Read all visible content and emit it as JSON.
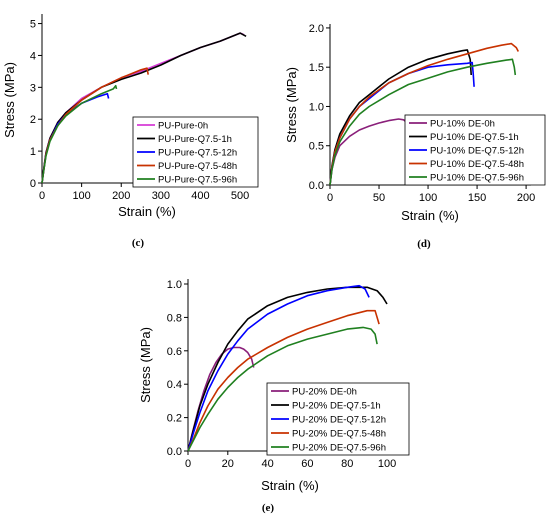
{
  "chart_data": [
    {
      "id": "c",
      "type": "line",
      "panel_label": "(c)",
      "xlabel": "Strain (%)",
      "ylabel": "Stress (MPa)",
      "xlim": [
        0,
        530
      ],
      "ylim": [
        0,
        5.3
      ],
      "xticks": [
        0,
        100,
        200,
        300,
        400,
        500
      ],
      "yticks": [
        0,
        1,
        2,
        3,
        4,
        5
      ],
      "legend_position": "bottom-right",
      "series": [
        {
          "name": "PU-Pure-0h",
          "color": "#d63bd6",
          "points": [
            [
              0,
              0
            ],
            [
              5,
              0.5
            ],
            [
              10,
              0.95
            ],
            [
              20,
              1.4
            ],
            [
              40,
              1.9
            ],
            [
              60,
              2.2
            ],
            [
              100,
              2.65
            ],
            [
              150,
              3.0
            ],
            [
              200,
              3.3
            ],
            [
              250,
              3.5
            ],
            [
              300,
              3.75
            ],
            [
              350,
              4.0
            ],
            [
              400,
              4.25
            ],
            [
              450,
              4.45
            ],
            [
              500,
              4.7
            ],
            [
              510,
              4.65
            ]
          ]
        },
        {
          "name": "PU-Pure-Q7.5-1h",
          "color": "#000000",
          "points": [
            [
              0,
              0
            ],
            [
              5,
              0.5
            ],
            [
              10,
              0.95
            ],
            [
              20,
              1.4
            ],
            [
              40,
              1.9
            ],
            [
              60,
              2.2
            ],
            [
              100,
              2.6
            ],
            [
              150,
              3.0
            ],
            [
              200,
              3.25
            ],
            [
              250,
              3.45
            ],
            [
              300,
              3.7
            ],
            [
              350,
              4.0
            ],
            [
              400,
              4.25
            ],
            [
              450,
              4.45
            ],
            [
              500,
              4.7
            ],
            [
              515,
              4.6
            ]
          ]
        },
        {
          "name": "PU-Pure-Q7.5-12h",
          "color": "#0000ff",
          "points": [
            [
              0,
              0
            ],
            [
              5,
              0.45
            ],
            [
              10,
              0.9
            ],
            [
              20,
              1.35
            ],
            [
              40,
              1.85
            ],
            [
              60,
              2.15
            ],
            [
              100,
              2.5
            ],
            [
              140,
              2.7
            ],
            [
              165,
              2.8
            ],
            [
              168,
              2.65
            ]
          ]
        },
        {
          "name": "PU-Pure-Q7.5-48h",
          "color": "#c83200",
          "points": [
            [
              0,
              0
            ],
            [
              5,
              0.45
            ],
            [
              10,
              0.9
            ],
            [
              20,
              1.35
            ],
            [
              40,
              1.8
            ],
            [
              60,
              2.15
            ],
            [
              100,
              2.6
            ],
            [
              150,
              3.0
            ],
            [
              200,
              3.3
            ],
            [
              250,
              3.55
            ],
            [
              265,
              3.6
            ],
            [
              268,
              3.4
            ]
          ]
        },
        {
          "name": "PU-Pure-Q7.5-96h",
          "color": "#208020",
          "points": [
            [
              0,
              0
            ],
            [
              5,
              0.45
            ],
            [
              10,
              0.85
            ],
            [
              20,
              1.3
            ],
            [
              40,
              1.8
            ],
            [
              60,
              2.1
            ],
            [
              100,
              2.5
            ],
            [
              150,
              2.8
            ],
            [
              180,
              2.95
            ],
            [
              186,
              3.05
            ],
            [
              188,
              2.95
            ]
          ]
        }
      ]
    },
    {
      "id": "d",
      "type": "line",
      "panel_label": "(d)",
      "xlabel": "Strain (%)",
      "ylabel": "Stress (MPa)",
      "xlim": [
        0,
        205
      ],
      "ylim": [
        0,
        2.05
      ],
      "xticks": [
        0,
        50,
        100,
        150,
        200
      ],
      "yticks": [
        0.0,
        0.5,
        1.0,
        1.5,
        2.0
      ],
      "legend_position": "bottom-right",
      "series": [
        {
          "name": "PU-10% DE-0h",
          "color": "#8a1f7a",
          "points": [
            [
              0,
              0
            ],
            [
              2,
              0.2
            ],
            [
              5,
              0.35
            ],
            [
              10,
              0.5
            ],
            [
              20,
              0.62
            ],
            [
              30,
              0.7
            ],
            [
              40,
              0.75
            ],
            [
              50,
              0.79
            ],
            [
              60,
              0.82
            ],
            [
              70,
              0.84
            ],
            [
              75,
              0.83
            ],
            [
              78,
              0.8
            ],
            [
              79,
              0.62
            ],
            [
              80,
              0.6
            ]
          ]
        },
        {
          "name": "PU-10% DE-Q7.5-1h",
          "color": "#000000",
          "points": [
            [
              0,
              0
            ],
            [
              2,
              0.25
            ],
            [
              5,
              0.45
            ],
            [
              10,
              0.65
            ],
            [
              20,
              0.88
            ],
            [
              30,
              1.05
            ],
            [
              40,
              1.15
            ],
            [
              60,
              1.35
            ],
            [
              80,
              1.5
            ],
            [
              100,
              1.6
            ],
            [
              120,
              1.67
            ],
            [
              135,
              1.71
            ],
            [
              140,
              1.72
            ],
            [
              143,
              1.6
            ],
            [
              144,
              1.4
            ]
          ]
        },
        {
          "name": "PU-10% DE-Q7.5-12h",
          "color": "#0000ff",
          "points": [
            [
              0,
              0
            ],
            [
              2,
              0.23
            ],
            [
              5,
              0.42
            ],
            [
              10,
              0.6
            ],
            [
              20,
              0.84
            ],
            [
              30,
              1.0
            ],
            [
              40,
              1.1
            ],
            [
              60,
              1.3
            ],
            [
              80,
              1.42
            ],
            [
              100,
              1.5
            ],
            [
              120,
              1.53
            ],
            [
              140,
              1.55
            ],
            [
              145,
              1.56
            ],
            [
              146,
              1.42
            ],
            [
              147,
              1.25
            ]
          ]
        },
        {
          "name": "PU-10% DE-Q7.5-48h",
          "color": "#c83200",
          "points": [
            [
              0,
              0
            ],
            [
              2,
              0.23
            ],
            [
              5,
              0.42
            ],
            [
              10,
              0.6
            ],
            [
              20,
              0.84
            ],
            [
              30,
              1.0
            ],
            [
              40,
              1.12
            ],
            [
              60,
              1.3
            ],
            [
              80,
              1.42
            ],
            [
              100,
              1.52
            ],
            [
              120,
              1.6
            ],
            [
              140,
              1.67
            ],
            [
              160,
              1.74
            ],
            [
              175,
              1.78
            ],
            [
              185,
              1.8
            ],
            [
              190,
              1.75
            ],
            [
              192,
              1.7
            ]
          ]
        },
        {
          "name": "PU-10% DE-Q7.5-96h",
          "color": "#208020",
          "points": [
            [
              0,
              0
            ],
            [
              2,
              0.2
            ],
            [
              5,
              0.38
            ],
            [
              10,
              0.55
            ],
            [
              20,
              0.75
            ],
            [
              30,
              0.9
            ],
            [
              40,
              1.0
            ],
            [
              60,
              1.15
            ],
            [
              80,
              1.28
            ],
            [
              100,
              1.36
            ],
            [
              120,
              1.44
            ],
            [
              140,
              1.5
            ],
            [
              160,
              1.55
            ],
            [
              180,
              1.59
            ],
            [
              186,
              1.6
            ],
            [
              188,
              1.5
            ],
            [
              189,
              1.4
            ]
          ]
        }
      ]
    },
    {
      "id": "e",
      "type": "line",
      "panel_label": "(e)",
      "xlabel": "Strain (%)",
      "ylabel": "Stress (MPa)",
      "xlim": [
        0,
        102
      ],
      "ylim": [
        0,
        1.03
      ],
      "xticks": [
        0,
        20,
        40,
        60,
        80,
        100
      ],
      "yticks": [
        0.0,
        0.2,
        0.4,
        0.6,
        0.8,
        1.0
      ],
      "legend_position": "bottom-right",
      "series": [
        {
          "name": "PU-20% DE-0h",
          "color": "#8a1f7a",
          "points": [
            [
              0,
              0
            ],
            [
              2,
              0.1
            ],
            [
              5,
              0.24
            ],
            [
              8,
              0.36
            ],
            [
              11,
              0.46
            ],
            [
              14,
              0.53
            ],
            [
              17,
              0.58
            ],
            [
              20,
              0.61
            ],
            [
              23,
              0.62
            ],
            [
              26,
              0.62
            ],
            [
              28,
              0.61
            ],
            [
              30,
              0.59
            ],
            [
              32,
              0.55
            ],
            [
              33,
              0.5
            ]
          ]
        },
        {
          "name": "PU-20% DE-Q7.5-1h",
          "color": "#000000",
          "points": [
            [
              0,
              0
            ],
            [
              3,
              0.14
            ],
            [
              6,
              0.27
            ],
            [
              10,
              0.4
            ],
            [
              15,
              0.53
            ],
            [
              20,
              0.64
            ],
            [
              25,
              0.72
            ],
            [
              30,
              0.79
            ],
            [
              40,
              0.87
            ],
            [
              50,
              0.92
            ],
            [
              60,
              0.95
            ],
            [
              70,
              0.97
            ],
            [
              80,
              0.98
            ],
            [
              90,
              0.98
            ],
            [
              95,
              0.96
            ],
            [
              98,
              0.92
            ],
            [
              100,
              0.88
            ]
          ]
        },
        {
          "name": "PU-20% DE-Q7.5-12h",
          "color": "#0000ff",
          "points": [
            [
              0,
              0
            ],
            [
              3,
              0.12
            ],
            [
              6,
              0.23
            ],
            [
              10,
              0.36
            ],
            [
              15,
              0.48
            ],
            [
              20,
              0.58
            ],
            [
              25,
              0.66
            ],
            [
              30,
              0.73
            ],
            [
              40,
              0.82
            ],
            [
              50,
              0.88
            ],
            [
              60,
              0.93
            ],
            [
              70,
              0.96
            ],
            [
              80,
              0.98
            ],
            [
              86,
              0.99
            ],
            [
              89,
              0.97
            ],
            [
              91,
              0.92
            ]
          ]
        },
        {
          "name": "PU-20% DE-Q7.5-48h",
          "color": "#c83200",
          "points": [
            [
              0,
              0
            ],
            [
              3,
              0.08
            ],
            [
              6,
              0.17
            ],
            [
              10,
              0.27
            ],
            [
              15,
              0.37
            ],
            [
              20,
              0.44
            ],
            [
              25,
              0.5
            ],
            [
              30,
              0.55
            ],
            [
              40,
              0.62
            ],
            [
              50,
              0.68
            ],
            [
              60,
              0.73
            ],
            [
              70,
              0.77
            ],
            [
              80,
              0.81
            ],
            [
              90,
              0.84
            ],
            [
              94,
              0.84
            ],
            [
              95,
              0.8
            ],
            [
              96,
              0.76
            ]
          ]
        },
        {
          "name": "PU-20% DE-Q7.5-96h",
          "color": "#208020",
          "points": [
            [
              0,
              0
            ],
            [
              3,
              0.07
            ],
            [
              6,
              0.14
            ],
            [
              10,
              0.22
            ],
            [
              15,
              0.31
            ],
            [
              20,
              0.38
            ],
            [
              25,
              0.44
            ],
            [
              30,
              0.49
            ],
            [
              40,
              0.57
            ],
            [
              50,
              0.63
            ],
            [
              60,
              0.67
            ],
            [
              70,
              0.7
            ],
            [
              80,
              0.73
            ],
            [
              88,
              0.74
            ],
            [
              92,
              0.73
            ],
            [
              94,
              0.7
            ],
            [
              95,
              0.64
            ]
          ]
        }
      ]
    }
  ]
}
